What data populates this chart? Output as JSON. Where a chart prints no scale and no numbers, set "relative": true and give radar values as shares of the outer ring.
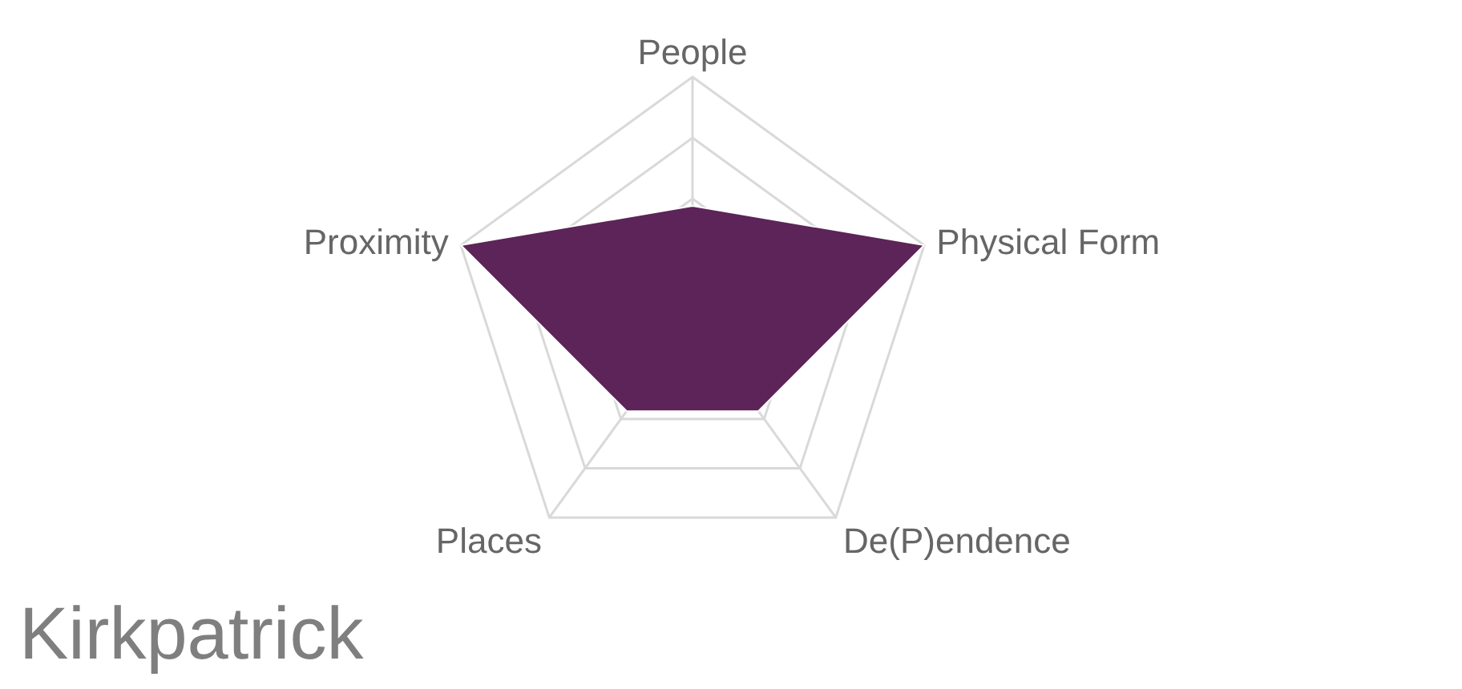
{
  "chart_data": {
    "type": "radar",
    "title": "Kirkpatrick",
    "relative": true,
    "categories": [
      "People",
      "Physical Form",
      "De(P)endence",
      "Places",
      "Proximity"
    ],
    "series": [
      {
        "color": "#5c2458",
        "values": [
          0.47,
          1,
          0.46,
          0.46,
          1
        ]
      }
    ],
    "grid": true
  }
}
